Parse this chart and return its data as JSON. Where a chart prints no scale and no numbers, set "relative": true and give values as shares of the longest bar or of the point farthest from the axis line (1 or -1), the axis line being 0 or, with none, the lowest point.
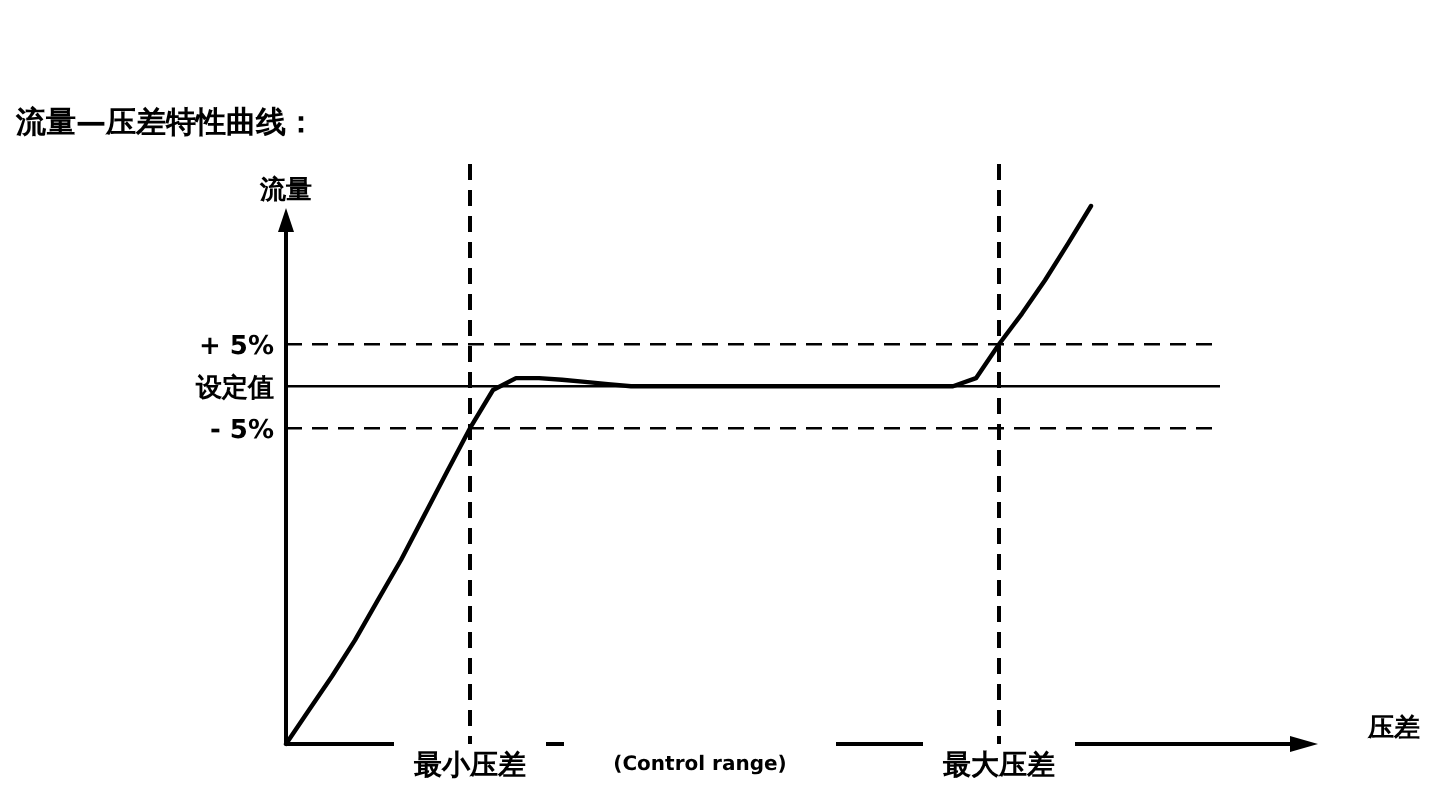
{
  "chart_data": {
    "type": "line",
    "relative": true,
    "title": "流量—压差特性曲线：",
    "xlabel": "压差",
    "ylabel": "流量",
    "categories": [
      null,
      null,
      null,
      null,
      null,
      null,
      null,
      null,
      "最小压差",
      null,
      null,
      null,
      null,
      null,
      null,
      null,
      null,
      null,
      "(Control range)",
      null,
      null,
      null,
      null,
      null,
      null,
      null,
      null,
      null,
      null,
      null,
      null,
      "最大压差",
      null,
      null,
      null,
      null,
      null,
      null,
      null,
      null,
      null,
      null,
      null,
      null,
      null
    ],
    "series": [
      {
        "color": "#000000",
        "values": [
          0,
          0.063,
          0.126,
          0.193,
          0.268,
          0.342,
          0.424,
          0.506,
          0.587,
          0.658,
          0.68,
          0.68,
          0.677,
          0.673,
          0.669,
          0.665,
          0.665,
          0.665,
          0.665,
          0.665,
          0.665,
          0.665,
          0.665,
          0.665,
          0.665,
          0.665,
          0.665,
          0.665,
          0.665,
          0.665,
          0.68,
          0.743,
          0.8,
          0.862,
          0.93,
          1,
          null,
          null,
          null,
          null,
          null,
          null,
          null,
          null,
          null
        ]
      }
    ],
    "ref_lines": [
      {
        "axis": "y",
        "value": 0.743,
        "line_style": "dashed",
        "color": "#000000"
      },
      {
        "axis": "y",
        "value": 0.665,
        "label": "设定值",
        "line_style": "solid",
        "color": "#000000"
      },
      {
        "axis": "y",
        "value": 0.587,
        "line_style": "dashed",
        "color": "#000000"
      },
      {
        "axis": "x",
        "value": "最小压差",
        "line_style": "dashed",
        "color": "#000000"
      },
      {
        "axis": "x",
        "value": "最大压差",
        "line_style": "dashed",
        "color": "#000000"
      }
    ],
    "annotations": [
      "+ 5%",
      "- 5%"
    ],
    "marker": "none",
    "line_style": "solid"
  }
}
